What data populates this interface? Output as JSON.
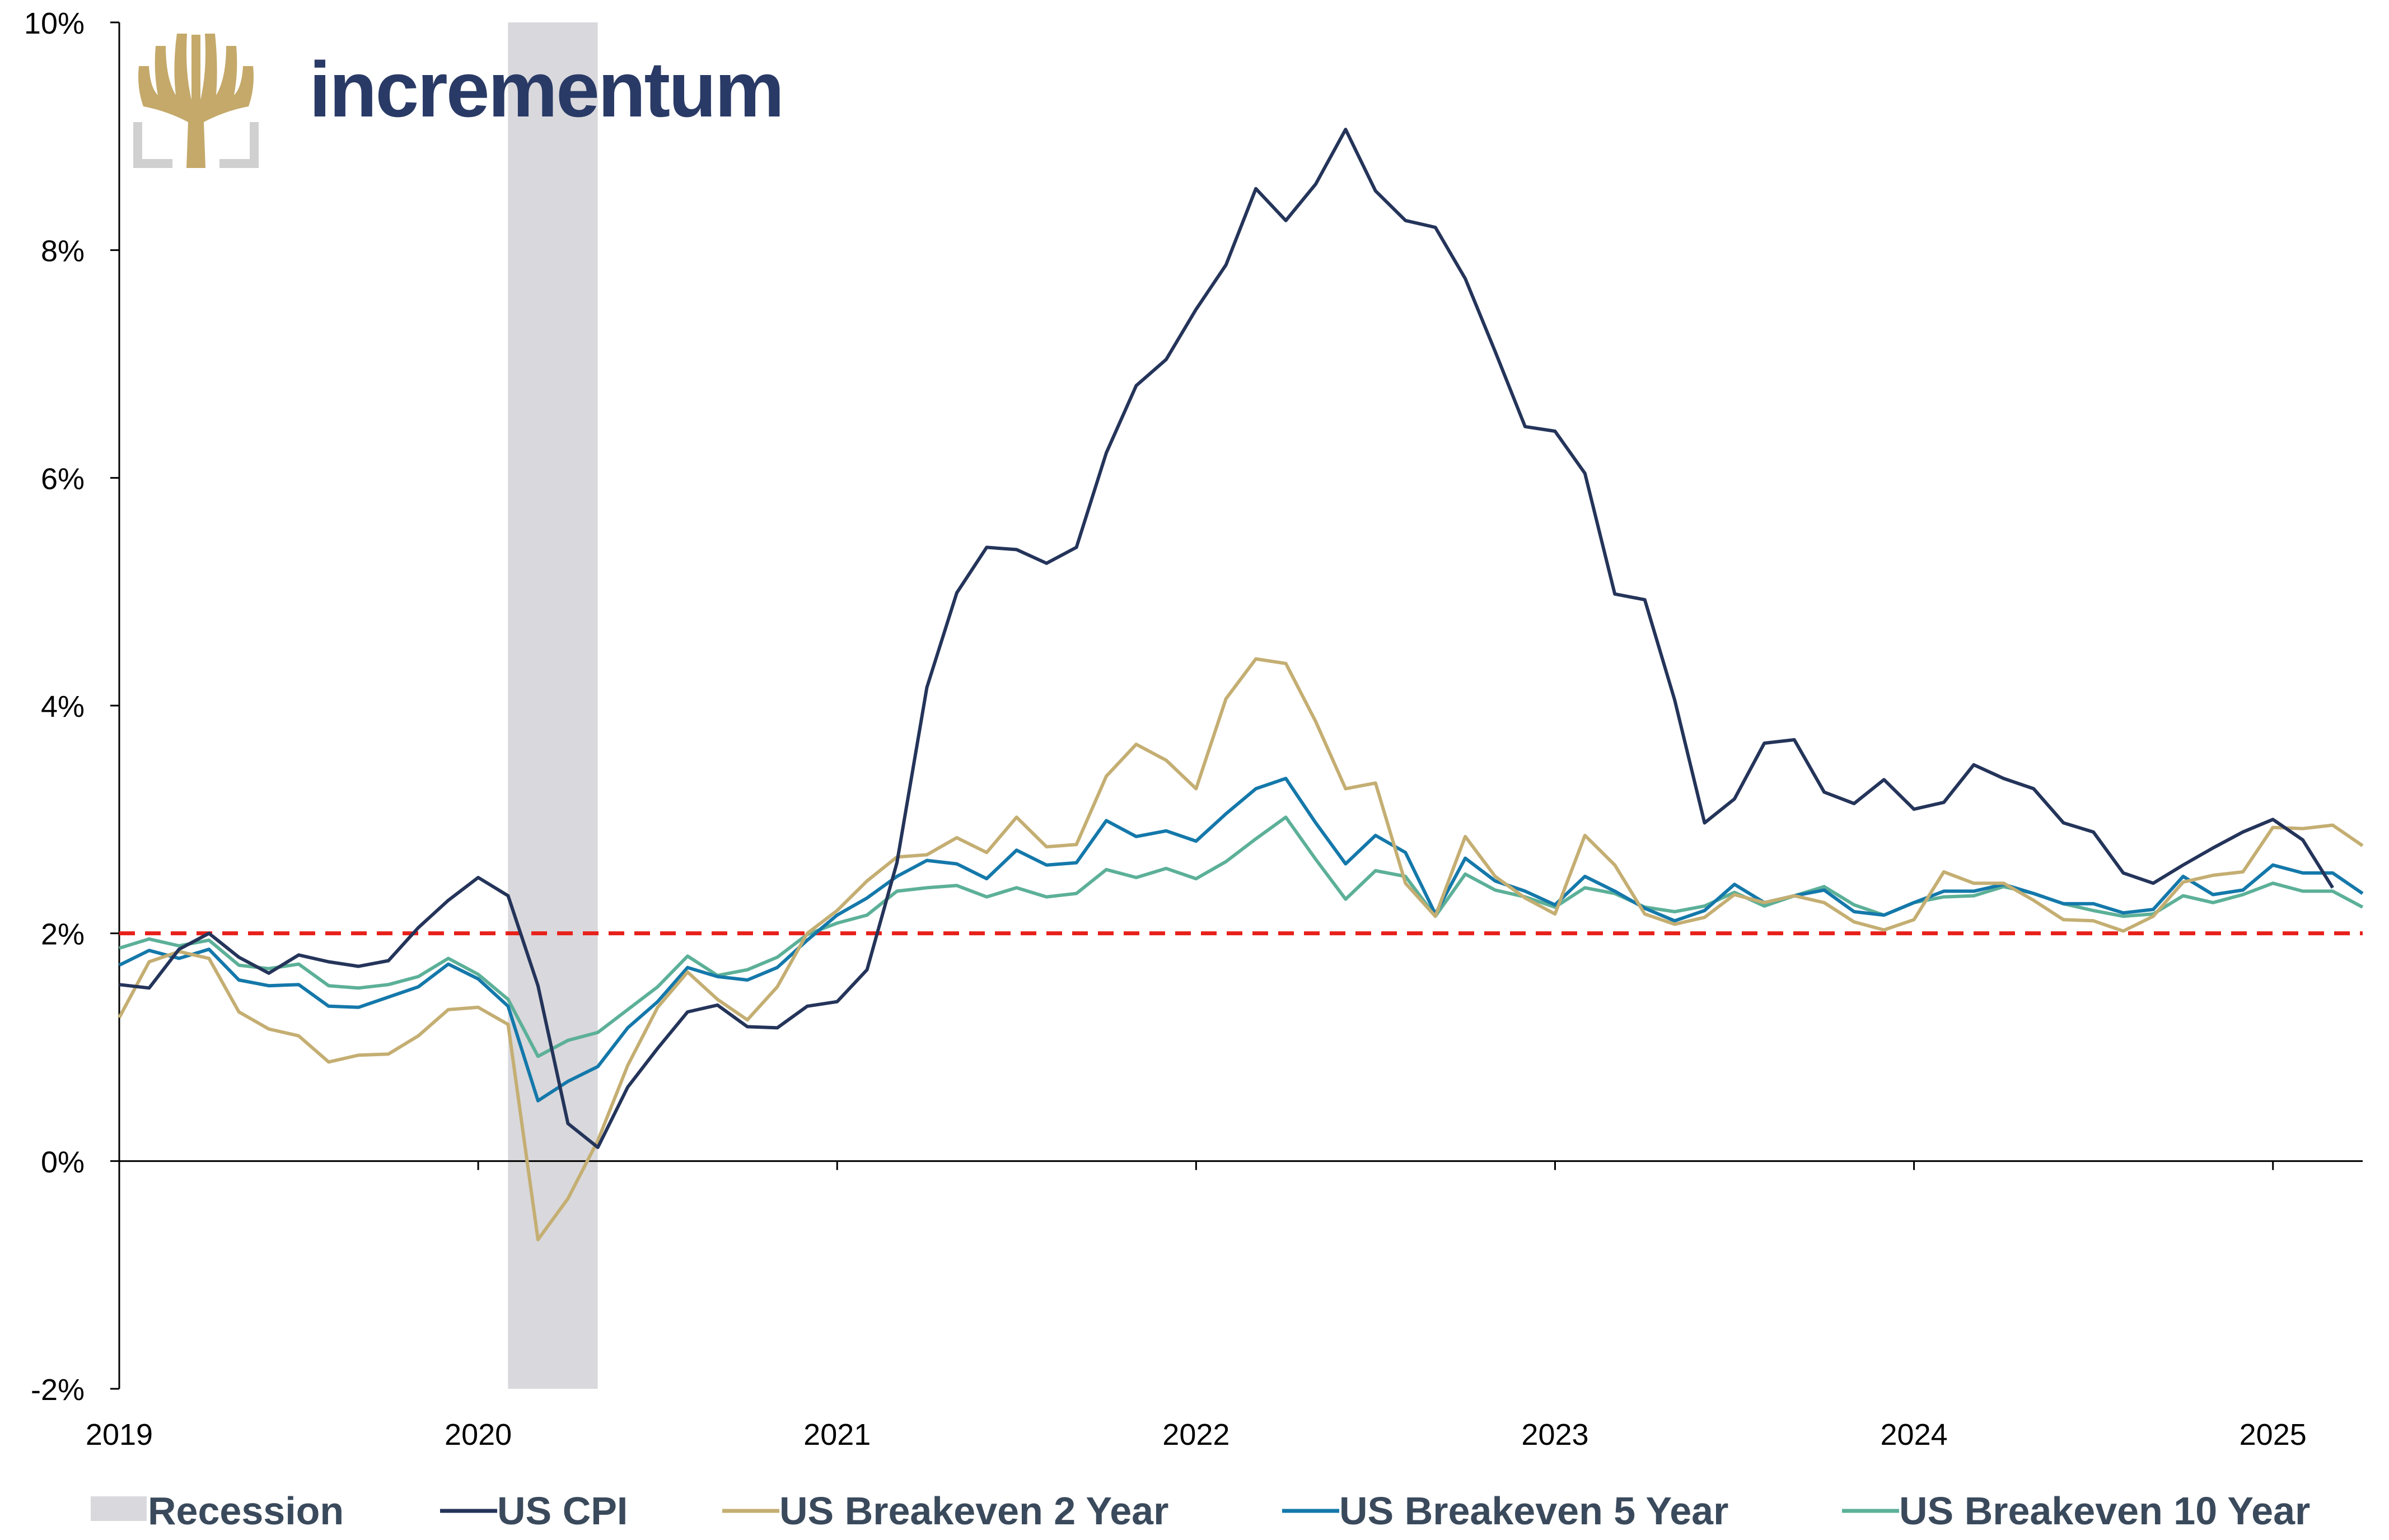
{
  "logo": {
    "text": "incrementum",
    "text_color": "#2a3a66",
    "icon": "tree-icon",
    "icon_color": "#c4a96a"
  },
  "chart_data": {
    "type": "line",
    "title": "",
    "xlabel": "",
    "ylabel": "",
    "xlim": [
      2019.0,
      2025.25
    ],
    "ylim": [
      -2,
      10
    ],
    "x_ticks": [
      2019,
      2020,
      2021,
      2022,
      2023,
      2024,
      2025
    ],
    "x_tick_labels": [
      "2019",
      "2020",
      "2021",
      "2022",
      "2023",
      "2024",
      "2025"
    ],
    "y_ticks": [
      -2,
      0,
      2,
      4,
      6,
      8,
      10
    ],
    "y_tick_labels": [
      "-2%",
      "0%",
      "2%",
      "4%",
      "6%",
      "8%",
      "10%"
    ],
    "x_start": 2019.0,
    "x_step": 0.08333,
    "grid": false,
    "legend_position": "bottom",
    "reference_line": {
      "value": 2,
      "style": "dashed",
      "color": "#e8201a"
    },
    "recession": {
      "label": "Recession",
      "start": 2020.083,
      "end": 2020.333,
      "color": "#d9d8dc"
    },
    "series": [
      {
        "name": "US CPI",
        "color": "#24345a",
        "values": [
          1.55,
          1.52,
          1.86,
          2.0,
          1.79,
          1.65,
          1.81,
          1.75,
          1.71,
          1.76,
          2.05,
          2.29,
          2.49,
          2.33,
          1.54,
          0.33,
          0.12,
          0.65,
          0.99,
          1.31,
          1.37,
          1.18,
          1.17,
          1.36,
          1.4,
          1.68,
          2.62,
          4.16,
          4.99,
          5.39,
          5.37,
          5.25,
          5.39,
          6.22,
          6.81,
          7.04,
          7.48,
          7.87,
          8.54,
          8.26,
          8.58,
          9.06,
          8.52,
          8.26,
          8.2,
          7.75,
          7.11,
          6.45,
          6.41,
          6.04,
          4.98,
          4.93,
          4.05,
          2.97,
          3.18,
          3.67,
          3.7,
          3.24,
          3.14,
          3.35,
          3.09,
          3.15,
          3.48,
          3.36,
          3.27,
          2.97,
          2.89,
          2.53,
          2.44,
          2.6,
          2.75,
          2.89,
          3.0,
          2.82,
          2.4
        ]
      },
      {
        "name": "US Breakeven 2 Year",
        "color": "#c4ae72",
        "values": [
          1.26,
          1.75,
          1.84,
          1.78,
          1.31,
          1.16,
          1.1,
          0.87,
          0.93,
          0.94,
          1.1,
          1.33,
          1.35,
          1.2,
          -0.69,
          -0.33,
          0.18,
          0.84,
          1.35,
          1.66,
          1.42,
          1.24,
          1.53,
          2.0,
          2.2,
          2.46,
          2.67,
          2.69,
          2.84,
          2.71,
          3.02,
          2.76,
          2.78,
          3.38,
          3.66,
          3.52,
          3.27,
          4.06,
          4.41,
          4.37,
          3.86,
          3.27,
          3.32,
          2.44,
          2.15,
          2.85,
          2.5,
          2.31,
          2.17,
          2.86,
          2.6,
          2.17,
          2.08,
          2.14,
          2.34,
          2.27,
          2.33,
          2.27,
          2.1,
          2.03,
          2.12,
          2.54,
          2.44,
          2.44,
          2.29,
          2.12,
          2.11,
          2.02,
          2.15,
          2.45,
          2.51,
          2.54,
          2.93,
          2.92,
          2.95,
          2.77
        ]
      },
      {
        "name": "US Breakeven 5 Year",
        "color": "#1478aa",
        "values": [
          1.72,
          1.85,
          1.78,
          1.86,
          1.59,
          1.54,
          1.55,
          1.36,
          1.35,
          1.44,
          1.53,
          1.73,
          1.6,
          1.36,
          0.53,
          0.7,
          0.83,
          1.17,
          1.4,
          1.7,
          1.62,
          1.59,
          1.7,
          1.94,
          2.16,
          2.31,
          2.5,
          2.64,
          2.61,
          2.48,
          2.73,
          2.6,
          2.62,
          2.99,
          2.85,
          2.9,
          2.81,
          3.05,
          3.27,
          3.36,
          2.97,
          2.61,
          2.86,
          2.71,
          2.17,
          2.66,
          2.46,
          2.37,
          2.25,
          2.5,
          2.37,
          2.22,
          2.11,
          2.2,
          2.43,
          2.27,
          2.33,
          2.38,
          2.19,
          2.16,
          2.27,
          2.37,
          2.37,
          2.43,
          2.35,
          2.26,
          2.26,
          2.18,
          2.21,
          2.5,
          2.34,
          2.38,
          2.6,
          2.53,
          2.53,
          2.35
        ]
      },
      {
        "name": "US Breakeven 10 Year",
        "color": "#5cb098",
        "values": [
          1.87,
          1.95,
          1.89,
          1.94,
          1.72,
          1.69,
          1.73,
          1.54,
          1.52,
          1.55,
          1.62,
          1.78,
          1.64,
          1.42,
          0.92,
          1.06,
          1.13,
          1.33,
          1.53,
          1.8,
          1.63,
          1.68,
          1.79,
          1.99,
          2.09,
          2.16,
          2.37,
          2.4,
          2.42,
          2.32,
          2.4,
          2.32,
          2.35,
          2.56,
          2.49,
          2.57,
          2.48,
          2.63,
          2.83,
          3.02,
          2.65,
          2.3,
          2.55,
          2.5,
          2.15,
          2.52,
          2.38,
          2.32,
          2.23,
          2.4,
          2.35,
          2.23,
          2.19,
          2.24,
          2.36,
          2.24,
          2.33,
          2.41,
          2.25,
          2.16,
          2.27,
          2.32,
          2.33,
          2.41,
          2.35,
          2.26,
          2.2,
          2.15,
          2.17,
          2.33,
          2.27,
          2.34,
          2.44,
          2.37,
          2.37,
          2.23
        ]
      }
    ]
  }
}
